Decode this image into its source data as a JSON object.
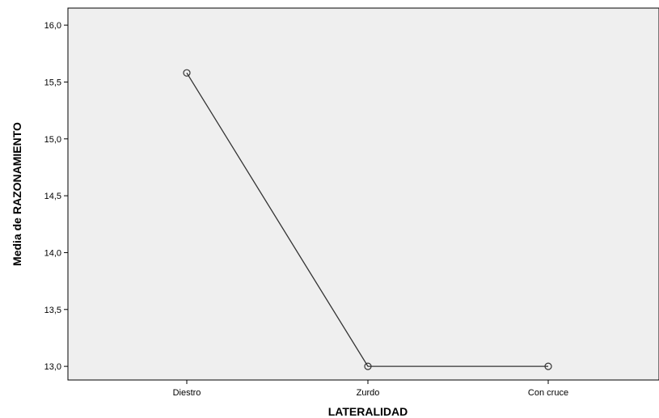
{
  "chart_data": {
    "type": "line",
    "categories": [
      "Diestro",
      "Zurdo",
      "Con cruce"
    ],
    "series": [
      {
        "values": [
          15.58,
          13.0,
          13.0
        ]
      }
    ],
    "xlabel": "LATERALIDAD",
    "ylabel": "Media de RAZONAMIENTO",
    "ylim": [
      12.88,
      16.15
    ],
    "yticks": [
      13.0,
      13.5,
      14.0,
      14.5,
      15.0,
      15.5,
      16.0
    ],
    "ytick_labels": [
      "13,0",
      "13,5",
      "14,0",
      "14,5",
      "15,0",
      "15,5",
      "16,0"
    ],
    "grid": false,
    "legend": "none",
    "plot_background": "#efefef",
    "line_color": "#333333"
  }
}
